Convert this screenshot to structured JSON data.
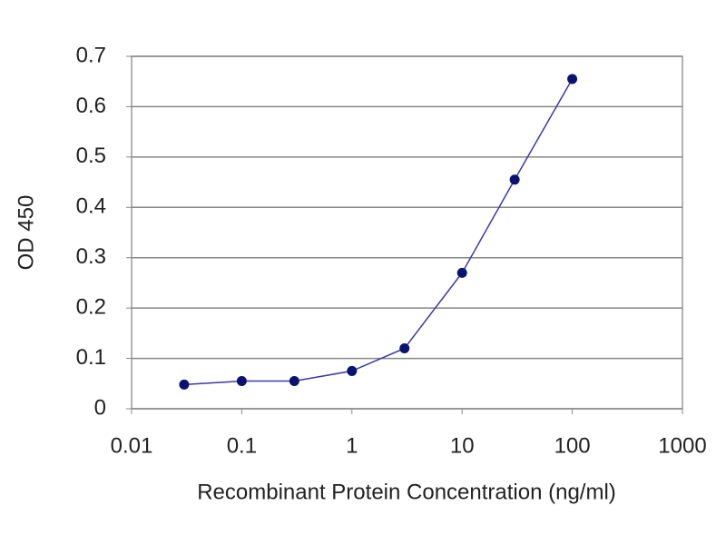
{
  "chart_data": {
    "type": "line",
    "x_label": "Recombinant Protein Concentration (ng/ml)",
    "y_label": "OD 450",
    "x": [
      0.03,
      0.1,
      0.3,
      1,
      3,
      10,
      30,
      100
    ],
    "values": [
      0.048,
      0.055,
      0.055,
      0.075,
      0.12,
      0.27,
      0.455,
      0.655
    ],
    "color": "#3a3aa8",
    "marker_color": "#0a1470",
    "xscale": "log",
    "xlim": [
      0.01,
      1000
    ],
    "xticks": [
      0.01,
      0.1,
      1,
      10,
      100,
      1000
    ],
    "ylim": [
      0,
      0.7
    ],
    "yticks": [
      0,
      0.1,
      0.2,
      0.3,
      0.4,
      0.5,
      0.6,
      0.7
    ],
    "grid": true
  }
}
